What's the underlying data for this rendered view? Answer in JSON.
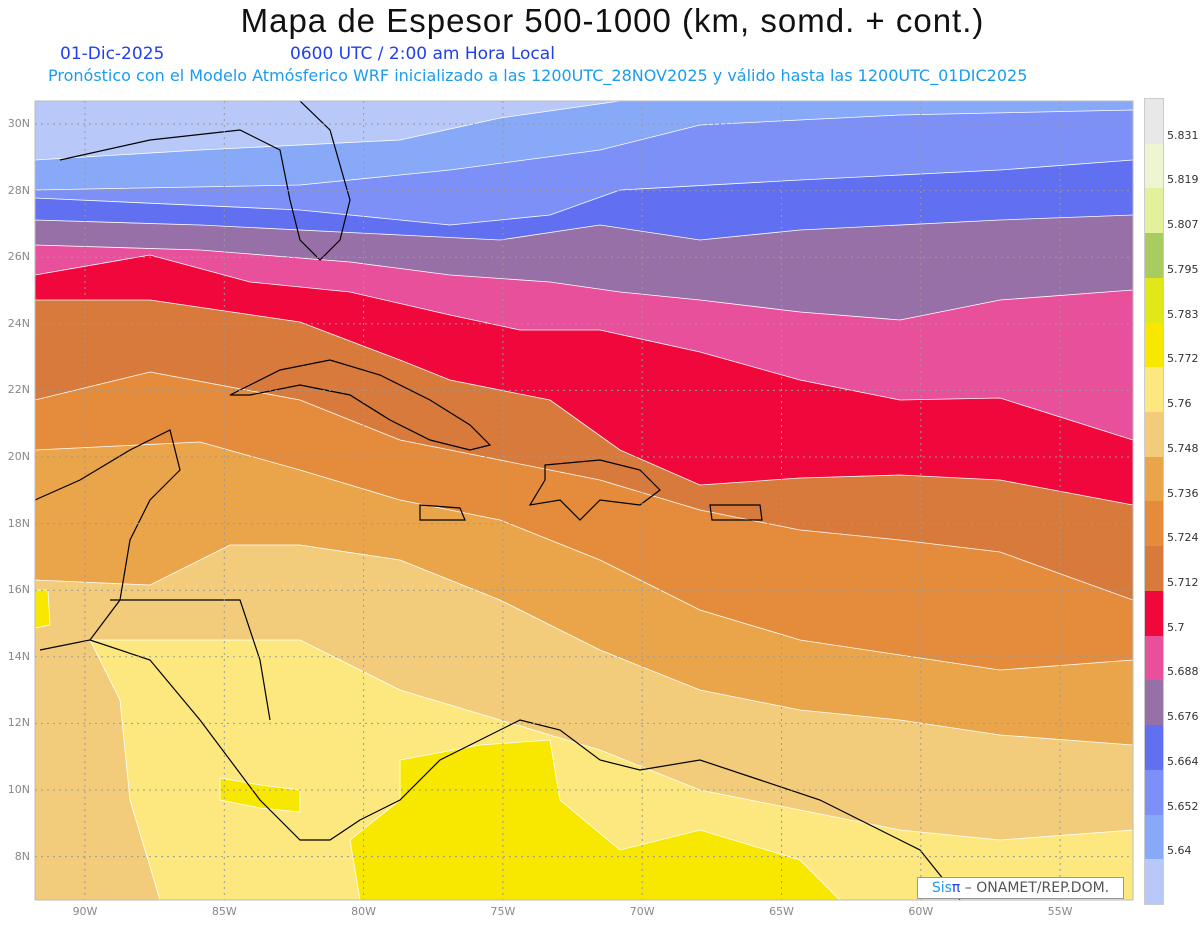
{
  "header": {
    "title": "Mapa de Espesor 500-1000 (km, somd. + cont.)",
    "date": "01-Dic-2025",
    "time": "0600 UTC / 2:00 am Hora Local",
    "subtitle": "Pronóstico con el Modelo Atmósferico WRF inicializado a las 1200UTC_28NOV2025 y válido hasta las  1200UTC_01DIC2025"
  },
  "axes": {
    "lat_labels": [
      "30N",
      "28N",
      "26N",
      "24N",
      "22N",
      "20N",
      "18N",
      "16N",
      "14N",
      "12N",
      "10N",
      "8N"
    ],
    "lon_labels": [
      "90W",
      "85W",
      "80W",
      "75W",
      "70W",
      "65W",
      "60W",
      "55W"
    ]
  },
  "legend": {
    "labels": [
      "5.831",
      "5.819",
      "5.807",
      "5.795",
      "5.783",
      "5.772",
      "5.76",
      "5.748",
      "5.736",
      "5.724",
      "5.712",
      "5.7",
      "5.688",
      "5.676",
      "5.664",
      "5.652",
      "5.64"
    ],
    "colors": [
      "#e8e8e8",
      "#eef5d2",
      "#e3f19a",
      "#a8cc60",
      "#e0e818",
      "#f8e800",
      "#fde880",
      "#f2cc7a",
      "#eaa44a",
      "#e48c3c",
      "#d87a3c",
      "#f0083c",
      "#e8509c",
      "#9870a8",
      "#6070f0",
      "#7c90f8",
      "#88a8f8",
      "#b8c8f8"
    ]
  },
  "credit": {
    "sis": "Sis",
    "pi": "π",
    "rest": " –  ONAMET/REP.DOM."
  }
}
